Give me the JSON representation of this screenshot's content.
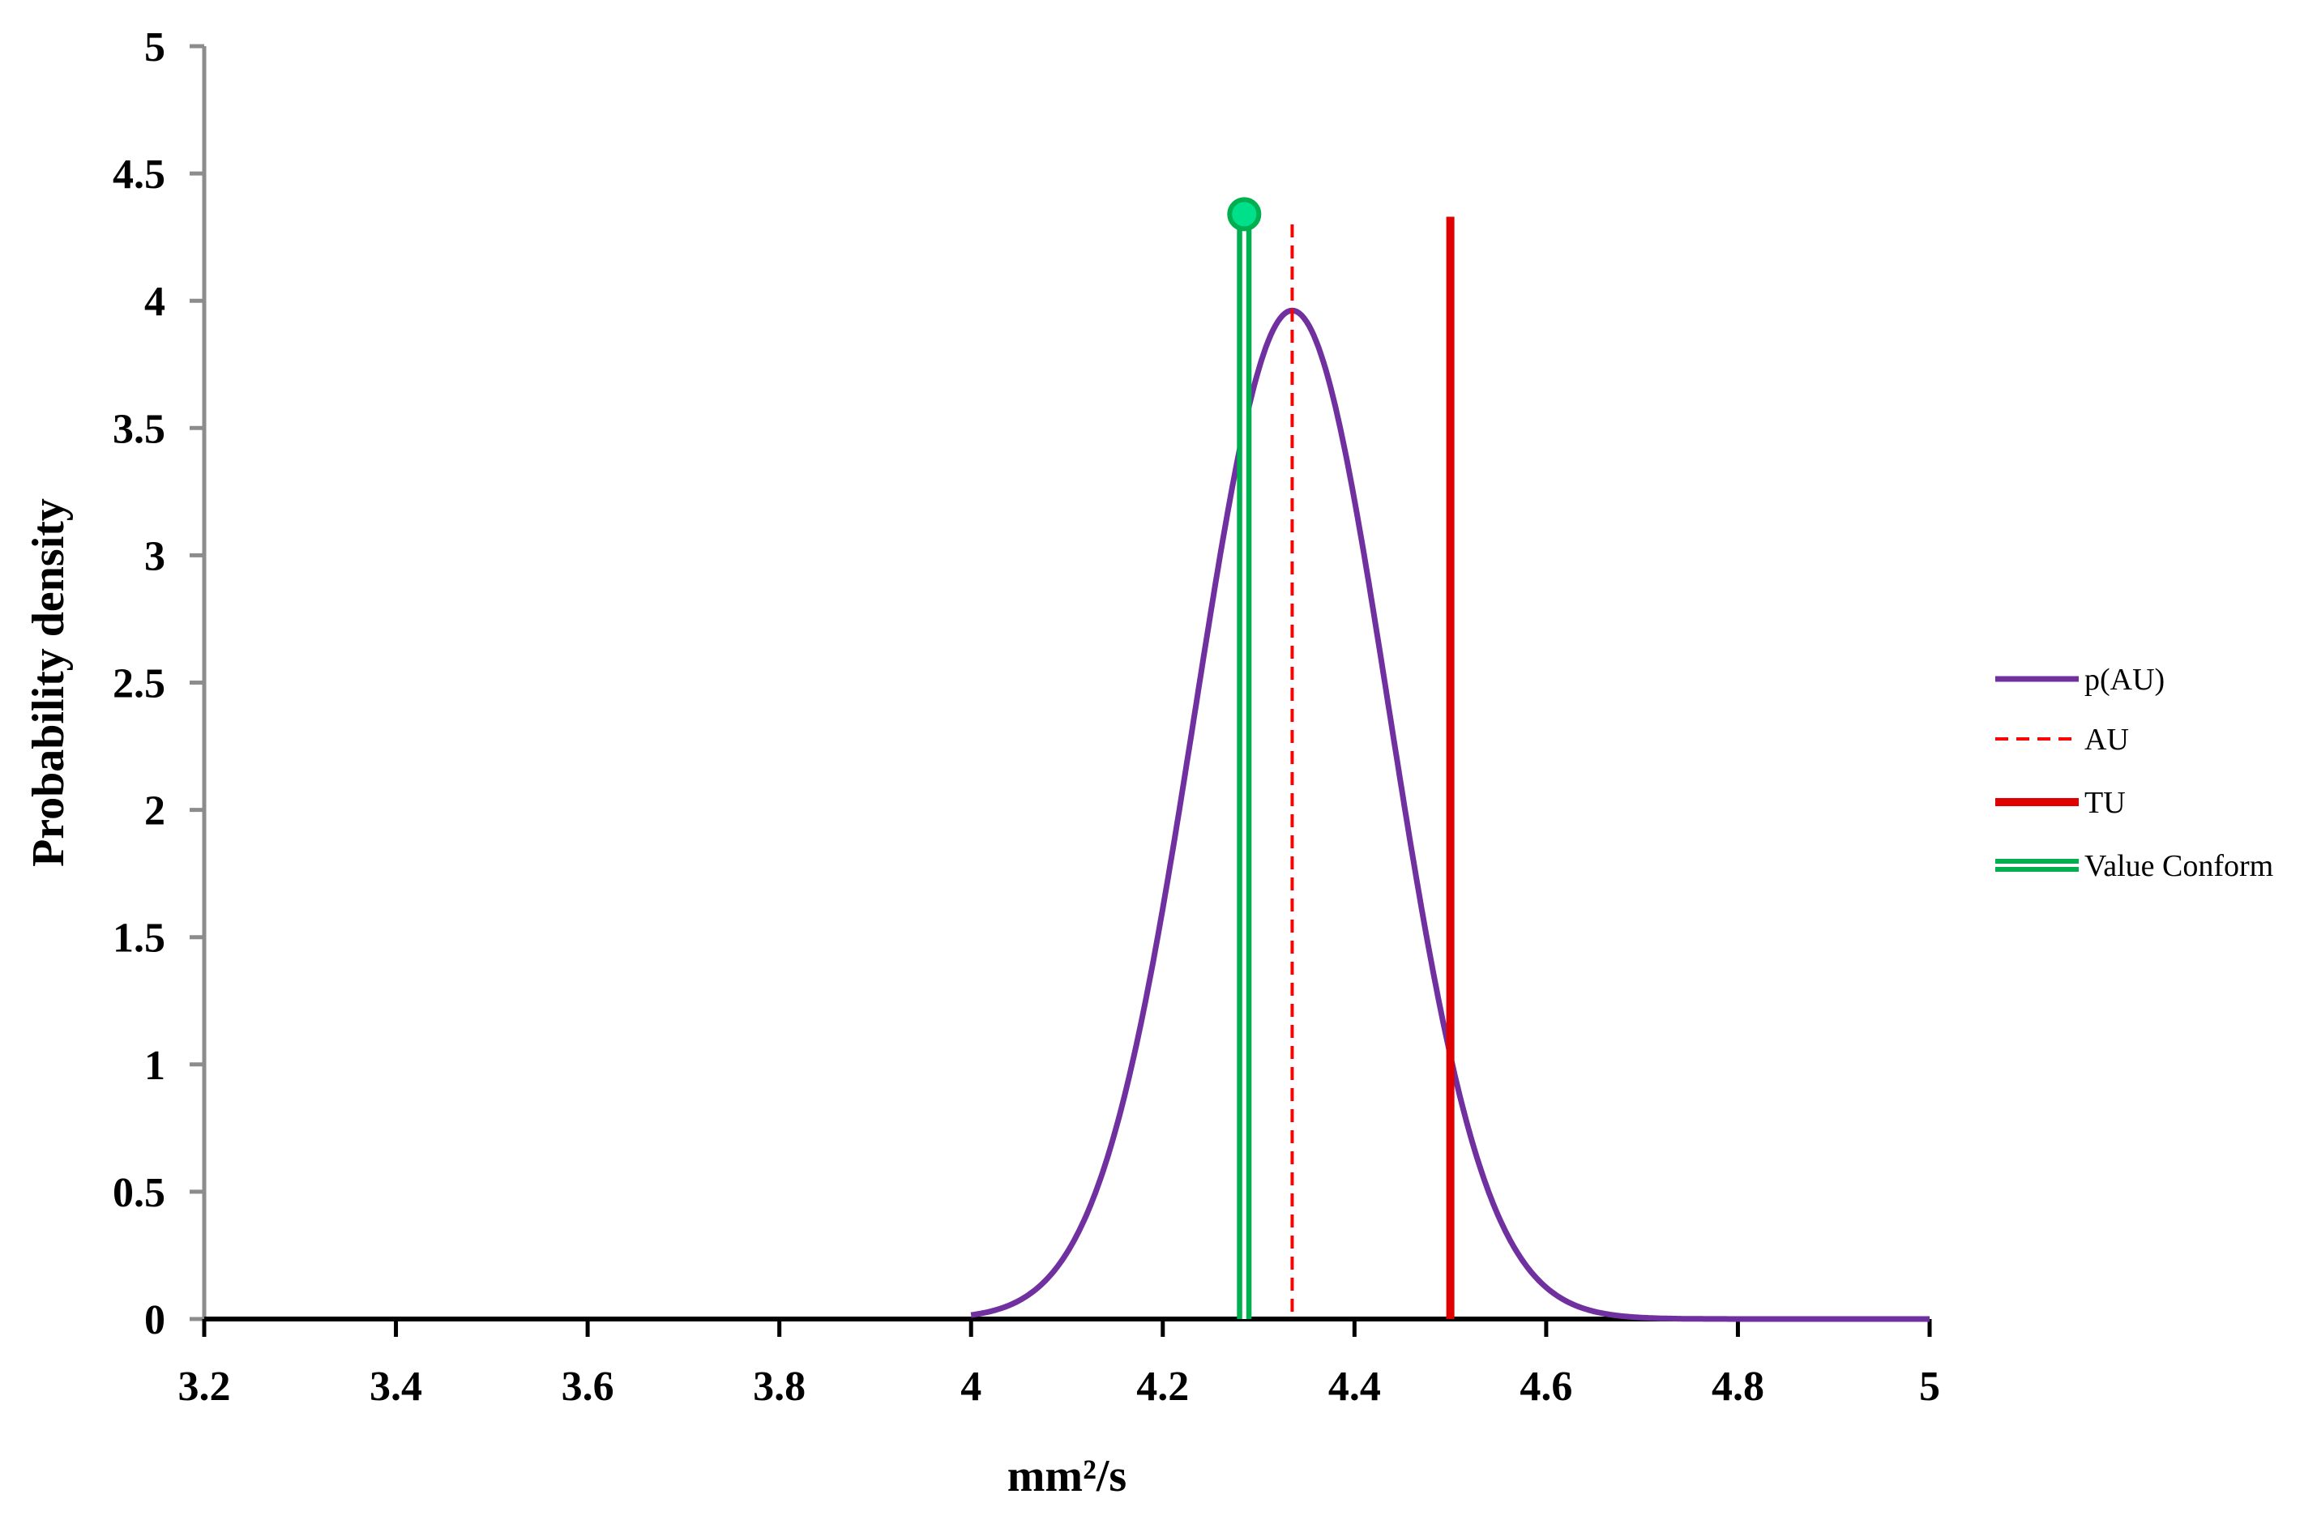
{
  "chart_data": {
    "type": "line",
    "title": "",
    "xlabel": "mm²/s",
    "ylabel": "Probability density",
    "xlim": [
      3.2,
      5
    ],
    "ylim": [
      0,
      5
    ],
    "x_ticks": [
      "3.2",
      "3.4",
      "3.6",
      "3.8",
      "4",
      "4.2",
      "4.4",
      "4.6",
      "4.8",
      "5"
    ],
    "y_ticks": [
      "0",
      "0.5",
      "1",
      "1.5",
      "2",
      "2.5",
      "3",
      "3.5",
      "4",
      "4.5",
      "5"
    ],
    "grid": false,
    "legend_position": "right",
    "series": [
      {
        "name": "p(AU)",
        "kind": "normal-curve",
        "mean": 4.335,
        "sd": 0.1007,
        "x_range": [
          4.0,
          5.0
        ],
        "color": "#7030a0"
      },
      {
        "name": "AU",
        "kind": "vertical-line",
        "x": 4.335,
        "y_top": 4.3,
        "style": "dashed",
        "color": "#ff0000"
      },
      {
        "name": "TU",
        "kind": "vertical-line",
        "x": 4.5,
        "y_top": 4.33,
        "style": "solid",
        "color": "#e00000"
      },
      {
        "name": "Value Conform",
        "kind": "vertical-line-marker",
        "x": 4.285,
        "y_top": 4.34,
        "style": "double",
        "color": "#00b050",
        "marker_color": "#00e08a"
      }
    ]
  }
}
